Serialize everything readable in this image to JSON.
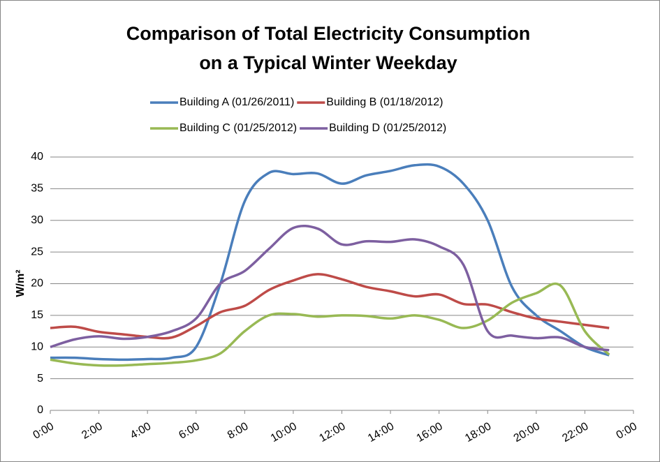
{
  "chart_data": {
    "type": "line",
    "title": [
      "Comparison of Total Electricity Consumption",
      "on a Typical Winter Weekday"
    ],
    "y_label": "W/m²",
    "x": [
      0,
      1,
      2,
      3,
      4,
      5,
      6,
      7,
      8,
      9,
      10,
      11,
      12,
      13,
      14,
      15,
      16,
      17,
      18,
      19,
      20,
      21,
      22,
      23
    ],
    "xlim": [
      0,
      24
    ],
    "xticks": [
      {
        "value": 0,
        "label": "0:00"
      },
      {
        "value": 2,
        "label": "2:00"
      },
      {
        "value": 4,
        "label": "4:00"
      },
      {
        "value": 6,
        "label": "6:00"
      },
      {
        "value": 8,
        "label": "8:00"
      },
      {
        "value": 10,
        "label": "10:00"
      },
      {
        "value": 12,
        "label": "12:00"
      },
      {
        "value": 14,
        "label": "14:00"
      },
      {
        "value": 16,
        "label": "16:00"
      },
      {
        "value": 18,
        "label": "18:00"
      },
      {
        "value": 20,
        "label": "20:00"
      },
      {
        "value": 22,
        "label": "22:00"
      },
      {
        "value": 24,
        "label": "0:00"
      }
    ],
    "ylim": [
      0,
      40
    ],
    "yticks": [
      0,
      5,
      10,
      15,
      20,
      25,
      30,
      35,
      40
    ],
    "grid": true,
    "legend": "top",
    "series": [
      {
        "name": "Building A (01/26/2011)",
        "color": "#4a7ebb",
        "values": [
          8.3,
          8.3,
          8.1,
          8.0,
          8.1,
          8.3,
          10.0,
          20,
          33,
          37.5,
          37.3,
          37.4,
          35.8,
          37.1,
          37.8,
          38.7,
          38.5,
          35.8,
          30,
          19.5,
          15,
          12.5,
          10,
          8.7
        ]
      },
      {
        "name": "Building B (01/18/2012)",
        "color": "#be4b48",
        "values": [
          13,
          13.2,
          12.4,
          12,
          11.6,
          11.5,
          13.3,
          15.5,
          16.5,
          19,
          20.5,
          21.5,
          20.7,
          19.5,
          18.8,
          18,
          18.3,
          16.8,
          16.7,
          15.5,
          14.5,
          14,
          13.5,
          13
        ]
      },
      {
        "name": "Building C (01/25/2012)",
        "color": "#98b954",
        "values": [
          8,
          7.4,
          7.1,
          7.1,
          7.3,
          7.5,
          7.9,
          9,
          12.5,
          15,
          15.2,
          14.8,
          15,
          14.9,
          14.5,
          15,
          14.3,
          13,
          14.2,
          17,
          18.5,
          19.7,
          12.5,
          8.8
        ]
      },
      {
        "name": "Building D (01/25/2012)",
        "color": "#7d5fa0",
        "values": [
          10,
          11.2,
          11.7,
          11.3,
          11.6,
          12.5,
          14.5,
          20,
          22,
          25.5,
          28.8,
          28.7,
          26.2,
          26.7,
          26.6,
          27,
          25.9,
          23,
          12.5,
          11.8,
          11.4,
          11.5,
          10,
          9.5
        ]
      }
    ]
  }
}
